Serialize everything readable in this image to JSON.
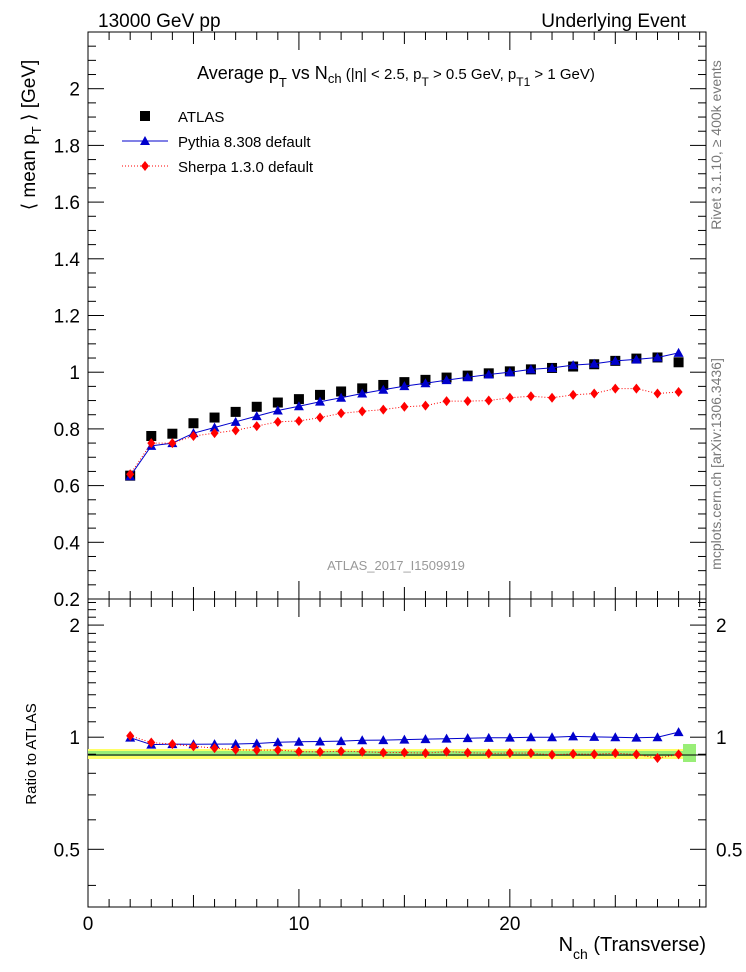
{
  "header": {
    "left": "13000 GeV pp",
    "right": "Underlying Event"
  },
  "side": {
    "rivet": "Rivet 3.1.10, ≥ 400k events",
    "mcplots": "mcplots.cern.ch [arXiv:1306.3436]"
  },
  "watermark": "ATLAS_2017_I1509919",
  "chart_data": {
    "type": "scatter",
    "title_parts": {
      "a": "Average p",
      "a_sub": "T",
      "b": " vs N",
      "b_sub": "ch",
      "c": " (|η| < 2.5, p",
      "c_sub": "T",
      "d": " > 0.5 GeV, p",
      "d_sub": "T1",
      "e": " > 1 GeV)"
    },
    "ylabel_parts": {
      "a": "⟨ mean p",
      "a_sub": "T",
      "b": " ⟩ [GeV]"
    },
    "xlabel_parts": {
      "a": "N",
      "a_sub": "ch",
      "b": " (Transverse)"
    },
    "ratio_ylabel": "Ratio to ATLAS",
    "xlim": [
      0,
      29.3
    ],
    "ylim": [
      0.2,
      2.2
    ],
    "ratio_ylim": [
      0.35,
      2.35
    ],
    "x_ticks": [
      "0",
      "10",
      "20"
    ],
    "y_ticks": [
      "0.2",
      "0.4",
      "0.6",
      "0.8",
      "1",
      "1.2",
      "1.4",
      "1.6",
      "1.8",
      "2"
    ],
    "ratio_ticks": [
      "0.5",
      "1",
      "2"
    ],
    "x": [
      2,
      3,
      4,
      5,
      6,
      7,
      8,
      9,
      10,
      11,
      12,
      13,
      14,
      15,
      16,
      17,
      18,
      19,
      20,
      21,
      22,
      23,
      24,
      25,
      26,
      27,
      28
    ],
    "series": [
      {
        "name": "ATLAS",
        "color": "#000000",
        "marker": "square",
        "values": [
          0.635,
          0.775,
          0.783,
          0.82,
          0.84,
          0.86,
          0.878,
          0.893,
          0.905,
          0.92,
          0.932,
          0.943,
          0.955,
          0.965,
          0.973,
          0.981,
          0.988,
          0.996,
          1.003,
          1.01,
          1.015,
          1.02,
          1.028,
          1.04,
          1.048,
          1.052,
          1.035
        ]
      },
      {
        "name": "Pythia 8.308 default",
        "color": "#0000cc",
        "marker": "triangle",
        "values": [
          0.633,
          0.74,
          0.75,
          0.785,
          0.805,
          0.825,
          0.845,
          0.865,
          0.88,
          0.896,
          0.91,
          0.925,
          0.938,
          0.951,
          0.961,
          0.972,
          0.982,
          0.992,
          1.0,
          1.01,
          1.015,
          1.025,
          1.03,
          1.04,
          1.045,
          1.052,
          1.068
        ]
      },
      {
        "name": "Sherpa 1.3.0 default",
        "color": "#ff0000",
        "marker": "diamond",
        "values": [
          0.64,
          0.75,
          0.75,
          0.775,
          0.785,
          0.795,
          0.81,
          0.825,
          0.828,
          0.84,
          0.855,
          0.862,
          0.868,
          0.878,
          0.882,
          0.898,
          0.898,
          0.9,
          0.91,
          0.915,
          0.91,
          0.92,
          0.925,
          0.942,
          0.942,
          0.925,
          0.93
        ]
      }
    ],
    "ratio_series": [
      {
        "name": "Pythia 8.308 default",
        "values": [
          0.997,
          0.955,
          0.958,
          0.957,
          0.958,
          0.959,
          0.962,
          0.969,
          0.972,
          0.974,
          0.976,
          0.981,
          0.982,
          0.985,
          0.988,
          0.991,
          0.994,
          0.996,
          0.997,
          1.0,
          1.0,
          1.005,
          1.002,
          1.0,
          0.997,
          1.0,
          1.032
        ]
      },
      {
        "name": "Sherpa 1.3.0 default",
        "values": [
          1.008,
          0.968,
          0.958,
          0.945,
          0.935,
          0.925,
          0.923,
          0.924,
          0.915,
          0.913,
          0.917,
          0.914,
          0.909,
          0.91,
          0.906,
          0.915,
          0.909,
          0.904,
          0.907,
          0.906,
          0.897,
          0.902,
          0.9,
          0.906,
          0.899,
          0.879,
          0.899
        ]
      }
    ]
  }
}
